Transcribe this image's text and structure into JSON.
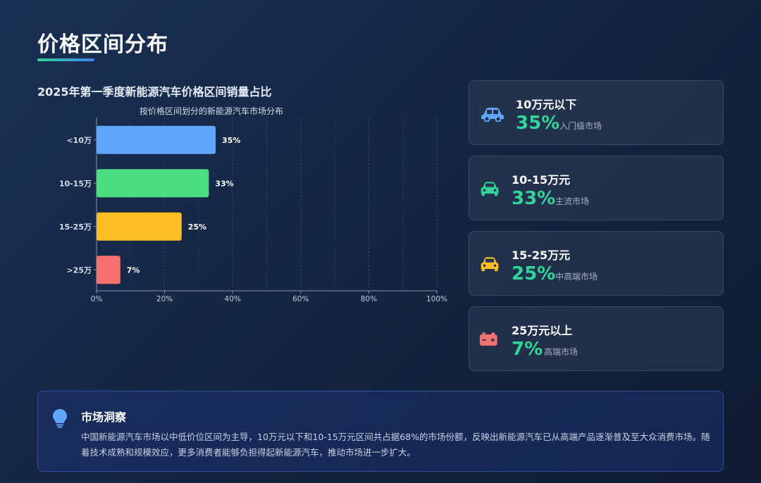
{
  "page": {
    "title": "价格区间分布",
    "chart_heading": "2025年第一季度新能源汽车价格区间销量占比"
  },
  "chart_data": {
    "type": "bar",
    "orientation": "horizontal",
    "title": "按价格区间划分的新能源汽车市场分布",
    "categories": [
      "<10万",
      "10-15万",
      "15-25万",
      ">25万"
    ],
    "values": [
      35,
      33,
      25,
      7
    ],
    "value_labels": [
      "35%",
      "33%",
      "25%",
      "7%"
    ],
    "colors": [
      "#60a5fa",
      "#4ade80",
      "#fbbf24",
      "#f87171"
    ],
    "xlim": [
      0,
      100
    ],
    "xticks": [
      "0%",
      "20%",
      "40%",
      "60%",
      "80%",
      "100%"
    ],
    "grid": true,
    "legend": "none"
  },
  "cards": [
    {
      "label": "10万元以下",
      "pct": "35%",
      "sub": "入门级市场",
      "icon": "car-icon",
      "color": "#60a5fa"
    },
    {
      "label": "10-15万元",
      "pct": "33%",
      "sub": "主流市场",
      "icon": "car-front-icon",
      "color": "#34d399"
    },
    {
      "label": "15-25万元",
      "pct": "25%",
      "sub": "中高端市场",
      "icon": "car-front-icon",
      "color": "#fbbf24"
    },
    {
      "label": "25万元以上",
      "pct": "7%",
      "sub": "高端市场",
      "icon": "battery-icon",
      "color": "#f87171"
    }
  ],
  "insight": {
    "icon": "lightbulb-icon",
    "title": "市场洞察",
    "text": "中国新能源汽车市场以中低价位区间为主导，10万元以下和10-15万元区间共占据68%的市场份额，反映出新能源汽车已从高端产品逐渐普及至大众消费市场。随着技术成熟和规模效应，更多消费者能够负担得起新能源汽车，推动市场进一步扩大。"
  }
}
